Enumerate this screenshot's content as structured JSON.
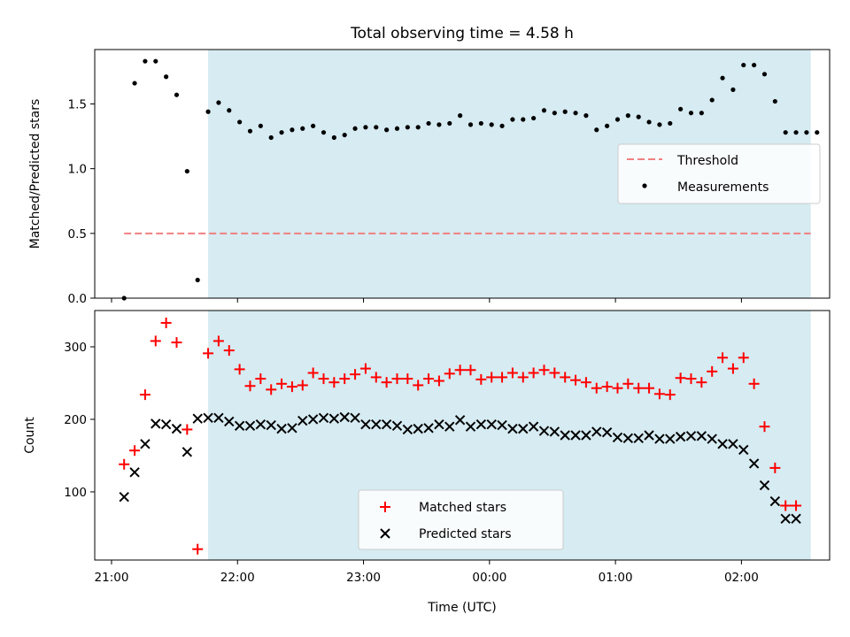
{
  "chart_data": [
    {
      "type": "scatter",
      "title": "Total observing time = 4.58 h",
      "ylabel": "Matched/Predicted stars",
      "xlim": [
        "20:52",
        "02:42"
      ],
      "ylim": [
        0,
        1.92
      ],
      "yticks": [
        "0.0",
        "0.5",
        "1.0",
        "1.5"
      ],
      "legend_position": "center-right",
      "shaded_interval": [
        "21:46",
        "02:33"
      ],
      "shade_color": "#add8e6",
      "threshold": {
        "name": "Threshold",
        "value": 0.5,
        "x_start": "21:06",
        "x_end": "02:33",
        "color": "#f08080",
        "style": "dashed"
      },
      "series": [
        {
          "name": "Measurements",
          "color": "#000000",
          "marker": "dot",
          "x": [
            "21:06",
            "21:11",
            "21:16",
            "21:21",
            "21:26",
            "21:31",
            "21:36",
            "21:41",
            "21:46",
            "21:51",
            "21:56",
            "22:01",
            "22:06",
            "22:11",
            "22:16",
            "22:21",
            "22:26",
            "22:31",
            "22:36",
            "22:41",
            "22:46",
            "22:51",
            "22:56",
            "23:01",
            "23:06",
            "23:11",
            "23:16",
            "23:21",
            "23:26",
            "23:31",
            "23:36",
            "23:41",
            "23:46",
            "23:51",
            "23:56",
            "00:01",
            "00:06",
            "00:11",
            "00:16",
            "00:21",
            "00:26",
            "00:31",
            "00:36",
            "00:41",
            "00:46",
            "00:51",
            "00:56",
            "01:01",
            "01:06",
            "01:11",
            "01:16",
            "01:21",
            "01:26",
            "01:31",
            "01:36",
            "01:41",
            "01:46",
            "01:51",
            "01:56",
            "02:01",
            "02:06",
            "02:11",
            "02:16",
            "02:21",
            "02:26",
            "02:31",
            "02:36"
          ],
          "y": [
            0.0,
            1.66,
            1.83,
            1.83,
            1.71,
            1.57,
            0.98,
            0.14,
            1.44,
            1.51,
            1.45,
            1.36,
            1.29,
            1.33,
            1.24,
            1.28,
            1.3,
            1.31,
            1.33,
            1.28,
            1.24,
            1.26,
            1.31,
            1.32,
            1.32,
            1.3,
            1.31,
            1.32,
            1.32,
            1.35,
            1.34,
            1.35,
            1.41,
            1.34,
            1.35,
            1.34,
            1.33,
            1.38,
            1.38,
            1.39,
            1.45,
            1.43,
            1.44,
            1.43,
            1.41,
            1.3,
            1.33,
            1.38,
            1.41,
            1.4,
            1.36,
            1.34,
            1.35,
            1.46,
            1.43,
            1.43,
            1.53,
            1.7,
            1.61,
            1.8,
            1.8,
            1.73,
            1.52,
            1.28,
            1.28,
            1.28,
            1.28
          ]
        }
      ]
    },
    {
      "type": "scatter",
      "xlabel": "Time (UTC)",
      "ylabel": "Count",
      "xlim": [
        "20:52",
        "02:42"
      ],
      "ylim": [
        6,
        350
      ],
      "xticks": [
        "21:00",
        "22:00",
        "23:00",
        "00:00",
        "01:00",
        "02:00"
      ],
      "yticks": [
        "100",
        "200",
        "300"
      ],
      "legend_position": "lower-center",
      "shaded_interval": [
        "21:46",
        "02:33"
      ],
      "shade_color": "#add8e6",
      "series": [
        {
          "name": "Matched stars",
          "color": "#ff0000",
          "marker": "plus",
          "x": [
            "21:06",
            "21:11",
            "21:16",
            "21:21",
            "21:26",
            "21:31",
            "21:36",
            "21:41",
            "21:46",
            "21:51",
            "21:56",
            "22:01",
            "22:06",
            "22:11",
            "22:16",
            "22:21",
            "22:26",
            "22:31",
            "22:36",
            "22:41",
            "22:46",
            "22:51",
            "22:56",
            "23:01",
            "23:06",
            "23:11",
            "23:16",
            "23:21",
            "23:26",
            "23:31",
            "23:36",
            "23:41",
            "23:46",
            "23:51",
            "23:56",
            "00:01",
            "00:06",
            "00:11",
            "00:16",
            "00:21",
            "00:26",
            "00:31",
            "00:36",
            "00:41",
            "00:46",
            "00:51",
            "00:56",
            "01:01",
            "01:06",
            "01:11",
            "01:16",
            "01:21",
            "01:26",
            "01:31",
            "01:36",
            "01:41",
            "01:46",
            "01:51",
            "01:56",
            "02:01",
            "02:06",
            "02:11",
            "02:16",
            "02:21",
            "02:26"
          ],
          "y": [
            138,
            157,
            234,
            308,
            333,
            306,
            186,
            21,
            291,
            308,
            295,
            269,
            246,
            256,
            241,
            249,
            245,
            247,
            264,
            256,
            251,
            256,
            262,
            270,
            258,
            251,
            256,
            256,
            247,
            256,
            253,
            263,
            268,
            268,
            255,
            258,
            258,
            264,
            258,
            264,
            268,
            264,
            258,
            254,
            251,
            243,
            245,
            243,
            249,
            243,
            243,
            235,
            234,
            257,
            256,
            251,
            266,
            285,
            270,
            285,
            249,
            190,
            133,
            81,
            81
          ]
        },
        {
          "name": "Predicted stars",
          "color": "#000000",
          "marker": "x",
          "x": [
            "21:06",
            "21:11",
            "21:16",
            "21:21",
            "21:26",
            "21:31",
            "21:36",
            "21:41",
            "21:46",
            "21:51",
            "21:56",
            "22:01",
            "22:06",
            "22:11",
            "22:16",
            "22:21",
            "22:26",
            "22:31",
            "22:36",
            "22:41",
            "22:46",
            "22:51",
            "22:56",
            "23:01",
            "23:06",
            "23:11",
            "23:16",
            "23:21",
            "23:26",
            "23:31",
            "23:36",
            "23:41",
            "23:46",
            "23:51",
            "23:56",
            "00:01",
            "00:06",
            "00:11",
            "00:16",
            "00:21",
            "00:26",
            "00:31",
            "00:36",
            "00:41",
            "00:46",
            "00:51",
            "00:56",
            "01:01",
            "01:06",
            "01:11",
            "01:16",
            "01:21",
            "01:26",
            "01:31",
            "01:36",
            "01:41",
            "01:46",
            "01:51",
            "01:56",
            "02:01",
            "02:06",
            "02:11",
            "02:16",
            "02:21",
            "02:26"
          ],
          "y": [
            93,
            127,
            166,
            194,
            193,
            187,
            155,
            201,
            202,
            202,
            197,
            191,
            191,
            193,
            192,
            187,
            188,
            198,
            200,
            202,
            201,
            203,
            202,
            193,
            193,
            193,
            191,
            186,
            187,
            188,
            193,
            190,
            199,
            190,
            193,
            193,
            192,
            187,
            187,
            190,
            184,
            183,
            178,
            178,
            178,
            183,
            182,
            175,
            174,
            174,
            178,
            173,
            173,
            176,
            177,
            177,
            173,
            166,
            166,
            158,
            139,
            109,
            87,
            63,
            63
          ]
        }
      ]
    }
  ]
}
